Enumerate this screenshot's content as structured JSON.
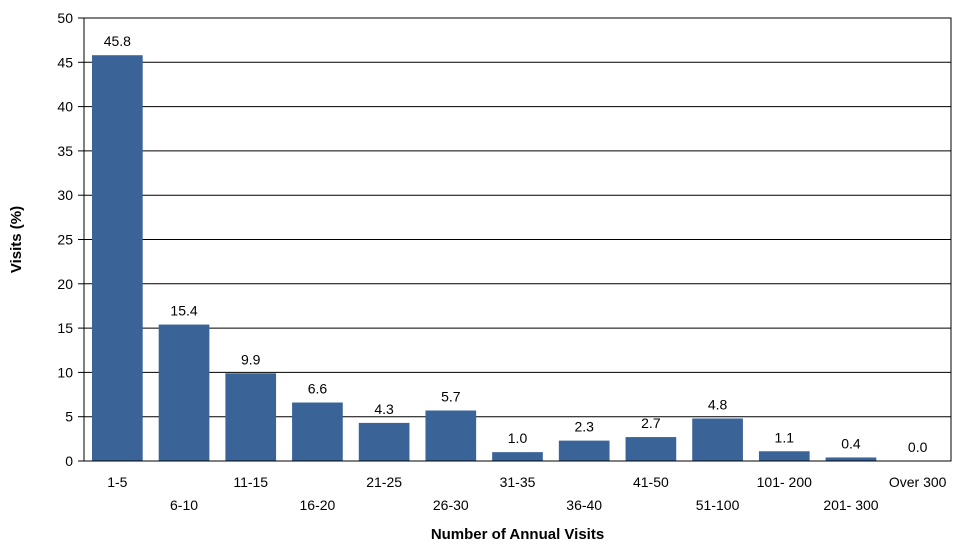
{
  "chart_data": {
    "type": "bar",
    "categories": [
      "1-5",
      "6-10",
      "11-15",
      "16-20",
      "21-25",
      "26-30",
      "31-35",
      "36-40",
      "41-50",
      "51-100",
      "101- 200",
      "201- 300",
      "Over 300"
    ],
    "values": [
      45.8,
      15.4,
      9.9,
      6.6,
      4.3,
      5.7,
      1.0,
      2.3,
      2.7,
      4.8,
      1.1,
      0.4,
      0.0
    ],
    "value_labels": [
      "45.8",
      "15.4",
      "9.9",
      "6.6",
      "4.3",
      "5.7",
      "1.0",
      "2.3",
      "2.7",
      "4.8",
      "1.1",
      "0.4",
      "0.0"
    ],
    "xlabel": "Number of Annual Visits",
    "ylabel": "Visits (%)",
    "ylim": [
      0,
      50
    ],
    "yticks": [
      "0",
      "5",
      "10",
      "15",
      "20",
      "25",
      "30",
      "35",
      "40",
      "45",
      "50"
    ],
    "grid": true,
    "bar_color": "#3A6398",
    "legend": "none"
  }
}
